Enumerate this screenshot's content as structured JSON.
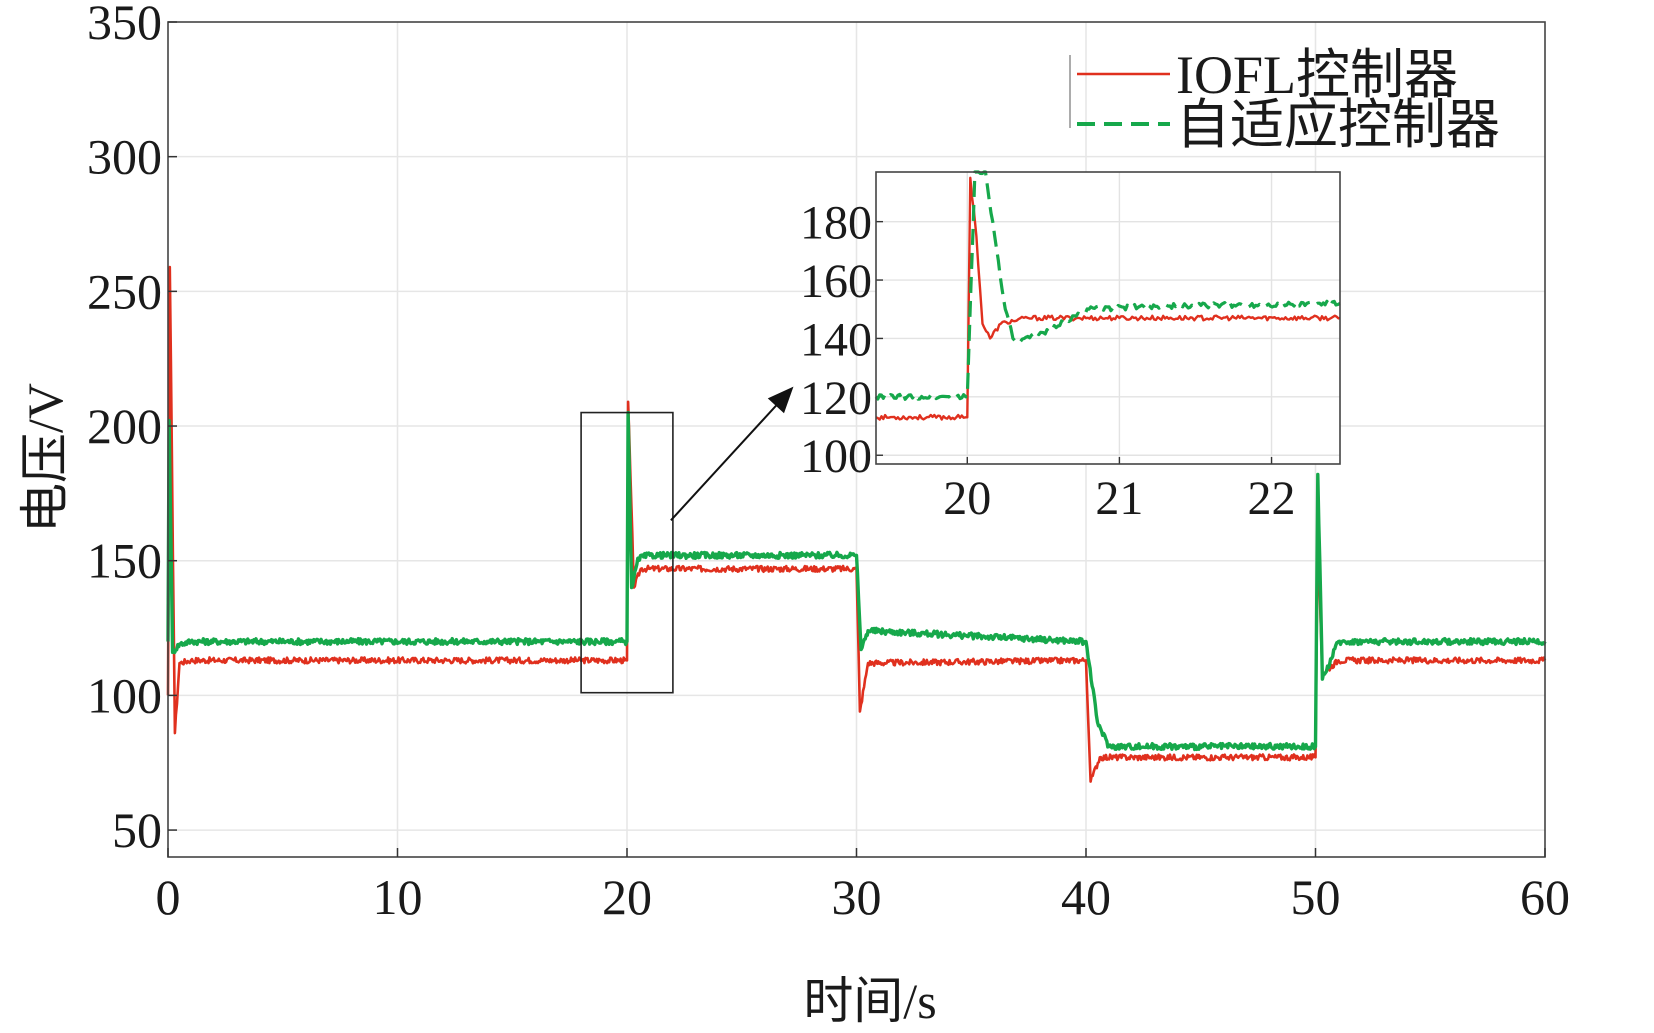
{
  "chart_data": {
    "type": "line",
    "title": "",
    "xlabel": "时间/s",
    "ylabel": "电压/V",
    "xlim": [
      0,
      60
    ],
    "ylim": [
      40,
      350
    ],
    "x_ticks": [
      "0",
      "10",
      "20",
      "30",
      "40",
      "50",
      "60"
    ],
    "y_ticks": [
      "50",
      "100",
      "150",
      "200",
      "250",
      "300",
      "350"
    ],
    "grid": true,
    "legend_position": "top-right",
    "series": [
      {
        "name": "IOFL控制器",
        "color": "#e0301e",
        "style": "solid",
        "x": [
          0,
          0.08,
          0.3,
          0.5,
          1,
          19.9,
          20.0,
          20.05,
          20.3,
          20.6,
          21,
          29.9,
          30.0,
          30.15,
          30.5,
          39.9,
          40.0,
          40.2,
          40.6,
          49.9,
          50.0,
          50.1,
          50.3,
          51,
          60
        ],
        "y": [
          100,
          259,
          86,
          112,
          113,
          113,
          113,
          209,
          140,
          147,
          147,
          147,
          147,
          94,
          112,
          113,
          113,
          68,
          77,
          77,
          77,
          160,
          108,
          113,
          113
        ]
      },
      {
        "name": "自适应控制器",
        "color": "#16a84b",
        "style": "dashed",
        "x": [
          0,
          0.05,
          0.2,
          0.5,
          1,
          19.9,
          20.0,
          20.05,
          20.2,
          20.5,
          21,
          29.9,
          30.0,
          30.2,
          30.5,
          39.9,
          40.0,
          40.5,
          41,
          49.9,
          50.0,
          50.1,
          50.3,
          51,
          60
        ],
        "y": [
          120,
          202,
          116,
          119,
          120,
          120,
          120,
          205,
          140,
          151,
          152,
          152,
          152,
          117,
          124,
          120,
          120,
          90,
          81,
          81,
          81,
          182,
          106,
          120,
          120
        ]
      }
    ],
    "inset": {
      "xlim": [
        19.4,
        22.45
      ],
      "ylim": [
        97,
        197
      ],
      "x_ticks": [
        "20",
        "21",
        "22"
      ],
      "y_ticks": [
        "100",
        "120",
        "140",
        "160",
        "180"
      ],
      "source_box": {
        "xlim": [
          18,
          22
        ],
        "ylim": [
          101,
          205
        ]
      },
      "series": [
        {
          "name": "IOFL控制器",
          "x": [
            19.4,
            19.99,
            20.0,
            20.02,
            20.06,
            20.1,
            20.15,
            20.22,
            20.3,
            20.4,
            20.6,
            21,
            22.45
          ],
          "y": [
            113,
            113,
            113,
            195,
            175,
            145,
            140,
            145,
            146,
            147,
            147,
            147,
            147
          ],
          "noise": 0.8
        },
        {
          "name": "自适应控制器",
          "x": [
            19.4,
            19.99,
            20.0,
            20.05,
            20.12,
            20.18,
            20.25,
            20.3,
            20.35,
            20.5,
            20.8,
            21.2,
            22.45
          ],
          "y": [
            120,
            120,
            120,
            197,
            197,
            175,
            150,
            140,
            139,
            142,
            150,
            151,
            152
          ],
          "noise": 0.9
        }
      ]
    }
  }
}
